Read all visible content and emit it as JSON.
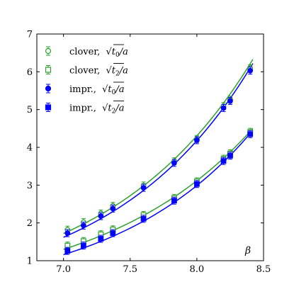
{
  "chart_data": {
    "type": "scatter",
    "xlabel": "β",
    "ylabel": "",
    "xlim": [
      6.8,
      8.5
    ],
    "ylim": [
      1,
      7
    ],
    "xticks": [
      7.0,
      7.5,
      8.0,
      8.5
    ],
    "yticks": [
      1,
      2,
      3,
      4,
      5,
      6,
      7
    ],
    "grid": false,
    "legend_position": "top-left",
    "colors": {
      "clover": "#2ca02c",
      "impr": "#0000ff"
    },
    "series": [
      {
        "name": "clover, √t0/a",
        "legend_main": "clover,",
        "legend_sym": "√t",
        "legend_sub": "0",
        "legend_tail": "/a",
        "color": "#2ca02c",
        "marker": "circle",
        "filled": false,
        "x": [
          7.03,
          7.15,
          7.28,
          7.37,
          7.6,
          7.83,
          8.0,
          8.2,
          8.25,
          8.4
        ],
        "y": [
          1.82,
          2.02,
          2.25,
          2.45,
          2.99,
          3.63,
          4.22,
          5.09,
          5.26,
          6.09
        ],
        "fit_x": [
          7.0,
          8.42
        ],
        "fit_y": [
          1.72,
          6.33
        ]
      },
      {
        "name": "clover, √t2/a",
        "legend_main": "clover,",
        "legend_sym": "√t",
        "legend_sub": "2",
        "legend_tail": "/a",
        "color": "#2ca02c",
        "marker": "square",
        "filled": false,
        "x": [
          7.03,
          7.15,
          7.28,
          7.37,
          7.6,
          7.83,
          8.0,
          8.2,
          8.25,
          8.4
        ],
        "y": [
          1.4,
          1.52,
          1.7,
          1.83,
          2.21,
          2.66,
          3.1,
          3.7,
          3.84,
          4.41
        ],
        "fit_x": [
          7.0,
          8.42
        ],
        "fit_y": [
          1.3,
          4.5
        ]
      },
      {
        "name": "impr., √t0/a",
        "legend_main": "impr.,",
        "legend_sym": "√t",
        "legend_sub": "0",
        "legend_tail": "/a",
        "color": "#0000ff",
        "marker": "circle",
        "filled": true,
        "x": [
          7.03,
          7.15,
          7.28,
          7.37,
          7.6,
          7.83,
          8.0,
          8.2,
          8.25,
          8.4
        ],
        "y": [
          1.73,
          1.93,
          2.18,
          2.38,
          2.93,
          3.59,
          4.19,
          5.04,
          5.23,
          6.03
        ],
        "fit_x": [
          7.0,
          8.42
        ],
        "fit_y": [
          1.62,
          6.22
        ]
      },
      {
        "name": "impr., √t2/a",
        "legend_main": "impr.,",
        "legend_sym": "√t",
        "legend_sub": "2",
        "legend_tail": "/a",
        "color": "#0000ff",
        "marker": "square",
        "filled": true,
        "x": [
          7.03,
          7.15,
          7.28,
          7.37,
          7.6,
          7.83,
          8.0,
          8.2,
          8.25,
          8.4
        ],
        "y": [
          1.26,
          1.4,
          1.58,
          1.73,
          2.11,
          2.59,
          3.03,
          3.64,
          3.78,
          4.35
        ],
        "fit_x": [
          7.0,
          8.42
        ],
        "fit_y": [
          1.16,
          4.45
        ]
      }
    ]
  }
}
